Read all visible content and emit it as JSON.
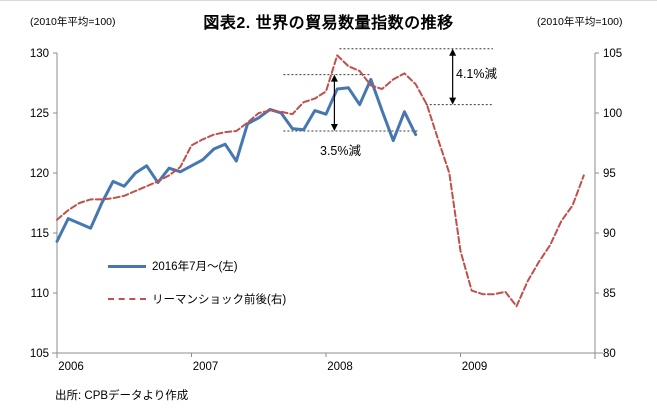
{
  "header": {
    "title": "図表2. 世界の貿易数量指数の推移",
    "left_axis_note": "(2010年平均=100)",
    "right_axis_note": "(2010年平均=100)"
  },
  "source": "出所: CPBデータより作成",
  "legend": [
    {
      "label": "2016年7月～(左)",
      "series": "recent",
      "color": "#4677b1",
      "style": "solid"
    },
    {
      "label": "リーマンショック前後(右)",
      "series": "lehman",
      "color": "#c0504d",
      "style": "dashed"
    }
  ],
  "annotations": [
    {
      "label": "4.1%減"
    },
    {
      "label": "3.5%減"
    }
  ],
  "colors": {
    "recent_line": "#4677b1",
    "lehman_line": "#c0504d",
    "axis": "#8c8c8c",
    "reference_line": "#3a3a3a",
    "arrow": "#000000",
    "text": "#000000"
  },
  "chart_data": {
    "type": "line",
    "title": "図表2. 世界の貿易数量指数の推移",
    "x_ticks": [
      "2006",
      "2007",
      "2008",
      "2009"
    ],
    "months_total": 48,
    "left_axis": {
      "min": 105,
      "max": 130,
      "ticks": [
        105,
        110,
        115,
        120,
        125,
        130
      ],
      "note": "(2010年平均=100)"
    },
    "right_axis": {
      "min": 80,
      "max": 105,
      "ticks": [
        80,
        85,
        90,
        95,
        100,
        105
      ],
      "note": "(2010年平均=100)"
    },
    "grid": false,
    "legend_position": "inside-left",
    "series": [
      {
        "name": "2016年7月～(左)",
        "axis": "left",
        "color": "#4677b1",
        "style": "solid",
        "width": 3,
        "start_month": 0,
        "values": [
          114.3,
          116.2,
          115.8,
          115.4,
          117.5,
          119.3,
          118.9,
          120.0,
          120.6,
          119.2,
          120.4,
          120.1,
          120.6,
          121.1,
          122.0,
          122.4,
          121.0,
          124.1,
          124.6,
          125.3,
          125.0,
          123.7,
          123.6,
          125.2,
          124.9,
          127.0,
          127.1,
          125.7,
          127.8,
          125.2,
          122.7,
          125.1,
          123.2
        ]
      },
      {
        "name": "リーマンショック前後(右)",
        "axis": "right",
        "color": "#c0504d",
        "style": "dashed",
        "width": 2,
        "start_month": 0,
        "values": [
          91.1,
          91.9,
          92.5,
          92.8,
          92.8,
          92.9,
          93.1,
          93.5,
          93.9,
          94.3,
          94.8,
          95.5,
          97.3,
          97.8,
          98.2,
          98.4,
          98.5,
          99.2,
          100.0,
          100.2,
          100.1,
          99.9,
          100.9,
          101.2,
          101.8,
          104.8,
          103.9,
          103.5,
          102.3,
          102.0,
          102.8,
          103.3,
          102.4,
          100.7,
          97.8,
          95.0,
          88.5,
          85.2,
          84.9,
          84.9,
          85.1,
          83.9,
          86.0,
          87.6,
          89.0,
          91.0,
          92.3,
          94.8
        ]
      }
    ],
    "reference_lines": [
      {
        "axis": "left",
        "value": 128.2,
        "month_from": 20.2,
        "month_to": 28.0
      },
      {
        "axis": "left",
        "value": 123.5,
        "month_from": 20.2,
        "month_to": 32.2
      },
      {
        "axis": "right",
        "value": 105.35,
        "month_from": 25.2,
        "month_to": 38.9
      },
      {
        "axis": "right",
        "value": 100.7,
        "month_from": 32.9,
        "month_to": 38.9
      }
    ],
    "arrows": [
      {
        "axis": "left",
        "month": 24.75,
        "from": 128.2,
        "to": 123.5,
        "label": "3.5%減"
      },
      {
        "axis": "right",
        "month": 35.3,
        "from": 105.35,
        "to": 100.7,
        "label": "4.1%減"
      }
    ]
  }
}
